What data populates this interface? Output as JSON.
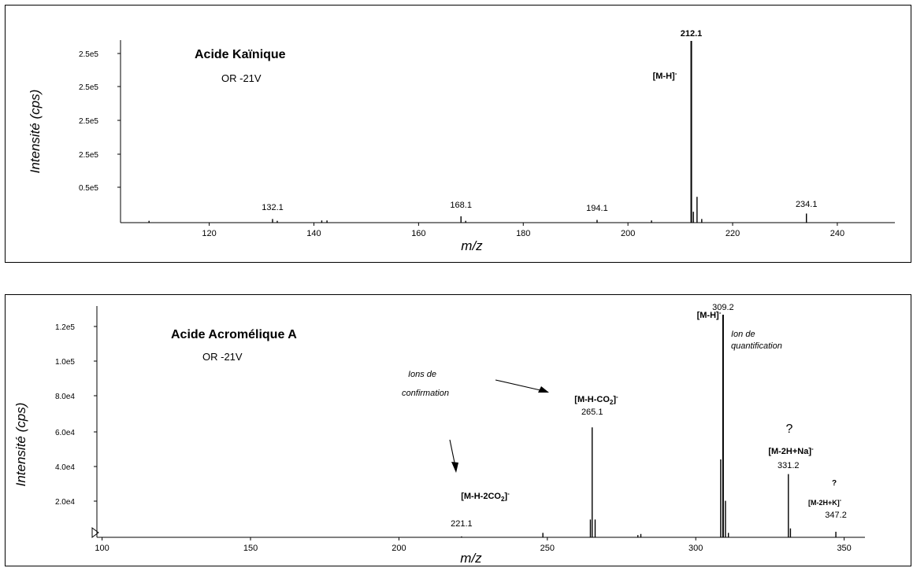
{
  "chart_data": [
    {
      "type": "line",
      "title": "Acide Kaïnique",
      "subtitle": "OR -21V",
      "xlabel": "m/z",
      "ylabel": "Intensité (cps)",
      "xlim": [
        102,
        251
      ],
      "x_ticks": [
        120,
        140,
        160,
        180,
        200,
        220,
        240
      ],
      "y_tick_labels": [
        "2.5e5",
        "2.5e5",
        "2.5e5",
        "2.5e5",
        "0.5e5"
      ],
      "peaks": [
        {
          "x": 108.5,
          "y": 0.01
        },
        {
          "x": 132.1,
          "y": 0.02,
          "label": "132.1"
        },
        {
          "x": 133.0,
          "y": 0.01
        },
        {
          "x": 141.5,
          "y": 0.012
        },
        {
          "x": 142.5,
          "y": 0.012
        },
        {
          "x": 168.1,
          "y": 0.035,
          "label": "168.1"
        },
        {
          "x": 169.0,
          "y": 0.01
        },
        {
          "x": 194.1,
          "y": 0.015,
          "label": "194.1"
        },
        {
          "x": 204.5,
          "y": 0.012
        },
        {
          "x": 212.1,
          "y": 1.0,
          "label": "212.1",
          "bold": true
        },
        {
          "x": 212.5,
          "y": 0.06
        },
        {
          "x": 213.2,
          "y": 0.142
        },
        {
          "x": 214.1,
          "y": 0.02
        },
        {
          "x": 234.1,
          "y": 0.05,
          "label": "234.1"
        }
      ],
      "annotations": [
        "[M-H]-"
      ]
    },
    {
      "type": "line",
      "title": "Acide Acromélique A",
      "subtitle": "OR -21V",
      "xlabel": "m/z",
      "ylabel": "Intensité (cps)",
      "xlim": [
        94,
        357
      ],
      "x_ticks": [
        100,
        150,
        200,
        250,
        300,
        350
      ],
      "y_tick_labels": [
        "1.2e5",
        "1.0e5",
        "8.0e4",
        "6.0e4",
        "4.0e4",
        "2.0e4"
      ],
      "peaks": [
        {
          "x": 221.1,
          "y": 0.004,
          "label": "221.1"
        },
        {
          "x": 248.5,
          "y": 0.02
        },
        {
          "x": 264.5,
          "y": 0.08
        },
        {
          "x": 265.1,
          "y": 0.494,
          "label": "265.1"
        },
        {
          "x": 266.1,
          "y": 0.08
        },
        {
          "x": 280.5,
          "y": 0.01
        },
        {
          "x": 281.5,
          "y": 0.015
        },
        {
          "x": 308.4,
          "y": 0.35
        },
        {
          "x": 309.2,
          "y": 1.0,
          "label": "309.2"
        },
        {
          "x": 310.0,
          "y": 0.164
        },
        {
          "x": 311.0,
          "y": 0.02
        },
        {
          "x": 331.2,
          "y": 0.284,
          "label": "331.2"
        },
        {
          "x": 331.9,
          "y": 0.04
        },
        {
          "x": 347.2,
          "y": 0.025,
          "label": "347.2"
        }
      ],
      "annotations": {
        "mh": "[M-H]-",
        "ion_quant_1": "Ion de",
        "ion_quant_2": "quantification",
        "ions_conf_1": "Ions de",
        "ions_conf_2": "confirmation",
        "mhco2": "[M-H-CO2]-",
        "mh2co2": "[M-H-2CO2]-",
        "q1": "?",
        "m2hna": "[M-2H+Na]-",
        "q2": "?",
        "m2hk": "[M-2H+K]-"
      }
    }
  ]
}
